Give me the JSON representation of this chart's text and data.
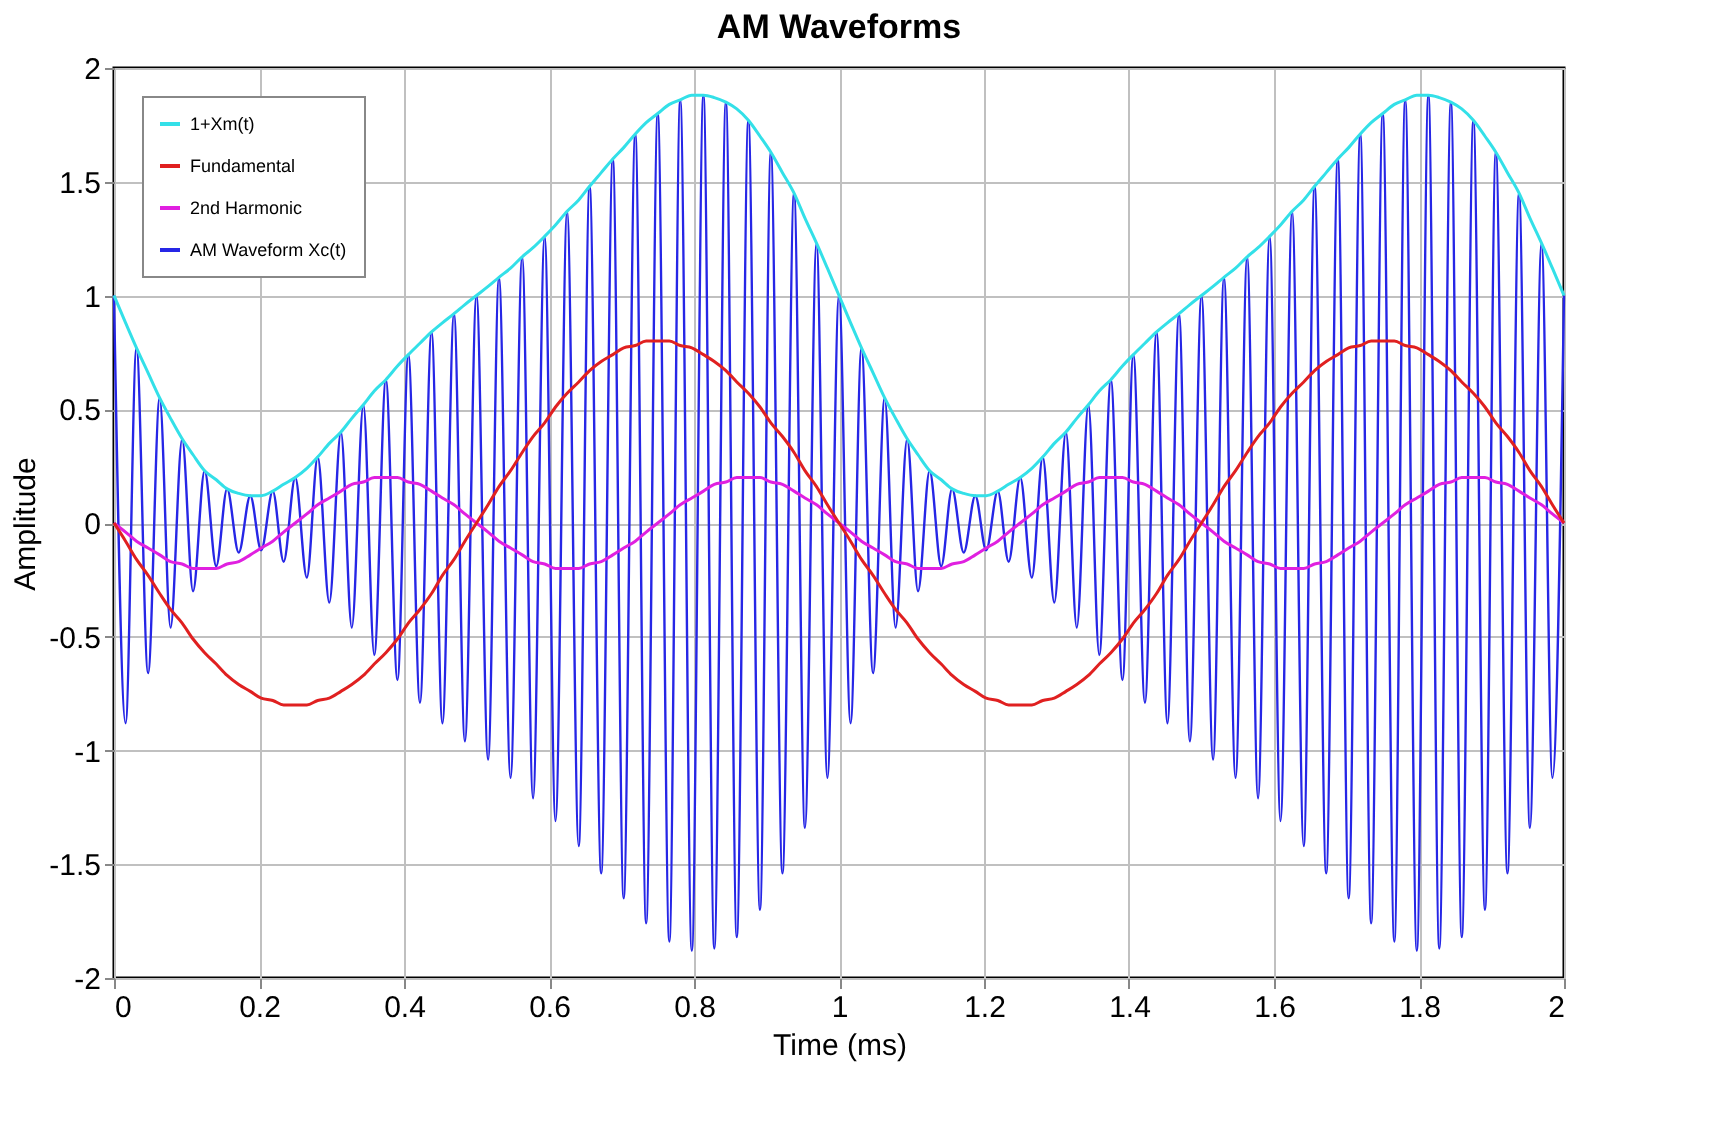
{
  "chart_data": {
    "type": "line",
    "title": "AM Waveforms",
    "xlabel": "Time (ms)",
    "ylabel": "Amplitude",
    "x": [
      0,
      0.016,
      0.031,
      0.047,
      0.063,
      0.078,
      0.094,
      0.109,
      0.125,
      0.141,
      0.156,
      0.172,
      0.188,
      0.203,
      0.219,
      0.234,
      0.25,
      0.266,
      0.281,
      0.297,
      0.313,
      0.328,
      0.344,
      0.359,
      0.375,
      0.391,
      0.406,
      0.422,
      0.438,
      0.453,
      0.469,
      0.484,
      0.5,
      0.516,
      0.531,
      0.547,
      0.563,
      0.578,
      0.594,
      0.609,
      0.625,
      0.641,
      0.656,
      0.672,
      0.688,
      0.703,
      0.719,
      0.734,
      0.75,
      0.766,
      0.781,
      0.797,
      0.813,
      0.828,
      0.844,
      0.859,
      0.875,
      0.891,
      0.906,
      0.922,
      0.938,
      0.953,
      0.969,
      0.984,
      1,
      1.016,
      1.031,
      1.047,
      1.063,
      1.078,
      1.094,
      1.109,
      1.125,
      1.141,
      1.156,
      1.172,
      1.188,
      1.203,
      1.219,
      1.234,
      1.25,
      1.266,
      1.281,
      1.297,
      1.313,
      1.328,
      1.344,
      1.359,
      1.375,
      1.391,
      1.406,
      1.422,
      1.438,
      1.453,
      1.469,
      1.484,
      1.5,
      1.516,
      1.531,
      1.547,
      1.563,
      1.578,
      1.594,
      1.609,
      1.625,
      1.641,
      1.656,
      1.672,
      1.688,
      1.703,
      1.719,
      1.734,
      1.75,
      1.766,
      1.781,
      1.797,
      1.813,
      1.828,
      1.844,
      1.859,
      1.875,
      1.891,
      1.906,
      1.922,
      1.938,
      1.953,
      1.969,
      1.984,
      2
    ],
    "series": [
      {
        "name": "1+Xm(t)",
        "color": "#33e0e8",
        "values": [
          1.0,
          0.88,
          0.77,
          0.66,
          0.55,
          0.46,
          0.37,
          0.3,
          0.23,
          0.19,
          0.15,
          0.13,
          0.12,
          0.12,
          0.14,
          0.17,
          0.2,
          0.24,
          0.29,
          0.35,
          0.4,
          0.46,
          0.52,
          0.58,
          0.63,
          0.69,
          0.74,
          0.79,
          0.84,
          0.88,
          0.92,
          0.96,
          1.0,
          1.04,
          1.08,
          1.12,
          1.17,
          1.21,
          1.26,
          1.31,
          1.37,
          1.42,
          1.48,
          1.54,
          1.6,
          1.65,
          1.71,
          1.76,
          1.8,
          1.84,
          1.86,
          1.88,
          1.88,
          1.87,
          1.85,
          1.82,
          1.77,
          1.7,
          1.63,
          1.54,
          1.45,
          1.34,
          1.23,
          1.12,
          1.0,
          0.88,
          0.77,
          0.66,
          0.55,
          0.46,
          0.37,
          0.3,
          0.23,
          0.19,
          0.15,
          0.13,
          0.12,
          0.12,
          0.14,
          0.17,
          0.2,
          0.24,
          0.29,
          0.35,
          0.4,
          0.46,
          0.52,
          0.58,
          0.63,
          0.69,
          0.74,
          0.79,
          0.84,
          0.88,
          0.92,
          0.96,
          1.0,
          1.04,
          1.08,
          1.12,
          1.17,
          1.21,
          1.26,
          1.31,
          1.37,
          1.42,
          1.48,
          1.54,
          1.6,
          1.65,
          1.71,
          1.76,
          1.8,
          1.84,
          1.86,
          1.88,
          1.88,
          1.87,
          1.85,
          1.82,
          1.77,
          1.7,
          1.63,
          1.54,
          1.45,
          1.34,
          1.23,
          1.12,
          1.0
        ]
      },
      {
        "name": "Fundamental",
        "color": "#e02020",
        "values": [
          0,
          -0.08,
          -0.16,
          -0.23,
          -0.31,
          -0.38,
          -0.44,
          -0.51,
          -0.57,
          -0.62,
          -0.67,
          -0.71,
          -0.74,
          -0.77,
          -0.78,
          -0.8,
          -0.8,
          -0.8,
          -0.78,
          -0.77,
          -0.74,
          -0.71,
          -0.67,
          -0.62,
          -0.57,
          -0.51,
          -0.44,
          -0.38,
          -0.31,
          -0.23,
          -0.16,
          -0.08,
          0,
          0.08,
          0.16,
          0.23,
          0.31,
          0.38,
          0.44,
          0.51,
          0.57,
          0.62,
          0.67,
          0.71,
          0.74,
          0.77,
          0.78,
          0.8,
          0.8,
          0.8,
          0.78,
          0.77,
          0.74,
          0.71,
          0.67,
          0.62,
          0.57,
          0.51,
          0.44,
          0.38,
          0.31,
          0.23,
          0.16,
          0.08,
          0,
          -0.08,
          -0.16,
          -0.23,
          -0.31,
          -0.38,
          -0.44,
          -0.51,
          -0.57,
          -0.62,
          -0.67,
          -0.71,
          -0.74,
          -0.77,
          -0.78,
          -0.8,
          -0.8,
          -0.8,
          -0.78,
          -0.77,
          -0.74,
          -0.71,
          -0.67,
          -0.62,
          -0.57,
          -0.51,
          -0.44,
          -0.38,
          -0.31,
          -0.23,
          -0.16,
          -0.08,
          0,
          0.08,
          0.16,
          0.23,
          0.31,
          0.38,
          0.44,
          0.51,
          0.57,
          0.62,
          0.67,
          0.71,
          0.74,
          0.77,
          0.78,
          0.8,
          0.8,
          0.8,
          0.78,
          0.77,
          0.74,
          0.71,
          0.67,
          0.62,
          0.57,
          0.51,
          0.44,
          0.38,
          0.31,
          0.23,
          0.16,
          0.08,
          0
        ]
      },
      {
        "name": "2nd Harmonic",
        "color": "#e020e0",
        "values": [
          0,
          -0.04,
          -0.08,
          -0.11,
          -0.14,
          -0.17,
          -0.18,
          -0.2,
          -0.2,
          -0.2,
          -0.18,
          -0.17,
          -0.14,
          -0.11,
          -0.08,
          -0.04,
          0,
          0.04,
          0.08,
          0.11,
          0.14,
          0.17,
          0.18,
          0.2,
          0.2,
          0.2,
          0.18,
          0.17,
          0.14,
          0.11,
          0.08,
          0.04,
          0,
          -0.04,
          -0.08,
          -0.11,
          -0.14,
          -0.17,
          -0.18,
          -0.2,
          -0.2,
          -0.2,
          -0.18,
          -0.17,
          -0.14,
          -0.11,
          -0.08,
          -0.04,
          0,
          0.04,
          0.08,
          0.11,
          0.14,
          0.17,
          0.18,
          0.2,
          0.2,
          0.2,
          0.18,
          0.17,
          0.14,
          0.11,
          0.08,
          0.04,
          0,
          -0.04,
          -0.08,
          -0.11,
          -0.14,
          -0.17,
          -0.18,
          -0.2,
          -0.2,
          -0.2,
          -0.18,
          -0.17,
          -0.14,
          -0.11,
          -0.08,
          -0.04,
          0,
          0.04,
          0.08,
          0.11,
          0.14,
          0.17,
          0.18,
          0.2,
          0.2,
          0.2,
          0.18,
          0.17,
          0.14,
          0.11,
          0.08,
          0.04,
          0,
          -0.04,
          -0.08,
          -0.11,
          -0.14,
          -0.17,
          -0.18,
          -0.2,
          -0.2,
          -0.2,
          -0.18,
          -0.17,
          -0.14,
          -0.11,
          -0.08,
          -0.04,
          0,
          0.04,
          0.08,
          0.11,
          0.14,
          0.17,
          0.18,
          0.2,
          0.2,
          0.2,
          0.18,
          0.17,
          0.14,
          0.11,
          0.08,
          0.04,
          0
        ]
      },
      {
        "name": "AM Waveform Xc(t)",
        "color": "#2626e6",
        "values": [
          1.0,
          -0.88,
          0.77,
          -0.66,
          0.55,
          -0.46,
          0.37,
          -0.3,
          0.23,
          -0.19,
          0.15,
          -0.13,
          0.12,
          -0.12,
          0.14,
          -0.17,
          0.2,
          -0.24,
          0.29,
          -0.35,
          0.4,
          -0.46,
          0.52,
          -0.58,
          0.63,
          -0.69,
          0.74,
          -0.79,
          0.84,
          -0.88,
          0.92,
          -0.96,
          1.0,
          -1.04,
          1.08,
          -1.12,
          1.17,
          -1.21,
          1.26,
          -1.31,
          1.37,
          -1.42,
          1.48,
          -1.54,
          1.6,
          -1.65,
          1.71,
          -1.76,
          1.8,
          -1.84,
          1.86,
          -1.88,
          1.88,
          -1.87,
          1.85,
          -1.82,
          1.77,
          -1.7,
          1.63,
          -1.54,
          1.45,
          -1.34,
          1.23,
          -1.12,
          1.0,
          -0.88,
          0.77,
          -0.66,
          0.55,
          -0.46,
          0.37,
          -0.3,
          0.23,
          -0.19,
          0.15,
          -0.13,
          0.12,
          -0.12,
          0.14,
          -0.17,
          0.2,
          -0.24,
          0.29,
          -0.35,
          0.4,
          -0.46,
          0.52,
          -0.58,
          0.63,
          -0.69,
          0.74,
          -0.79,
          0.84,
          -0.88,
          0.92,
          -0.96,
          1.0,
          -1.04,
          1.08,
          -1.12,
          1.17,
          -1.21,
          1.26,
          -1.31,
          1.37,
          -1.42,
          1.48,
          -1.54,
          1.6,
          -1.65,
          1.71,
          -1.76,
          1.8,
          -1.84,
          1.86,
          -1.88,
          1.88,
          -1.87,
          1.85,
          -1.82,
          1.77,
          -1.7,
          1.63,
          -1.54,
          1.45,
          -1.34,
          1.23,
          -1.12,
          1.0
        ]
      }
    ],
    "xlim": [
      0,
      2
    ],
    "xticks": [
      0,
      0.2,
      0.4,
      0.6,
      0.8,
      1,
      1.2,
      1.4,
      1.6,
      1.8,
      2
    ],
    "ylim": [
      -2,
      2
    ],
    "yticks": [
      -2,
      -1.5,
      -1,
      -0.5,
      0,
      0.5,
      1,
      1.5,
      2
    ],
    "grid": true,
    "legend": "top left",
    "marker": "none",
    "line_style": "solid"
  }
}
